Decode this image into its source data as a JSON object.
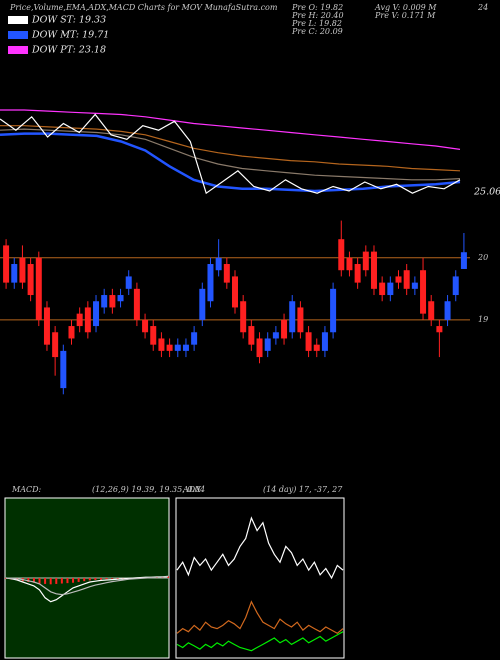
{
  "header": {
    "title": "Price,Volume,EMA,ADX,MACD Charts for MOV MunafaSutra.com",
    "legend": [
      {
        "name": "DOW ST: 19.33",
        "color": "#ffffff"
      },
      {
        "name": "DOW MT: 19.71",
        "color": "#2255ff"
      },
      {
        "name": "DOW PT: 23.18",
        "color": "#ff33ff"
      }
    ],
    "info": [
      "Pre  O: 19.82",
      "Pre  H: 20.40",
      "Pre  L: 19.82",
      "Pre  C: 20.09",
      "Avg V: 0.009 M",
      "Pre  V: 0.171 M"
    ]
  },
  "chart_data": [
    {
      "type": "line",
      "annotations": [
        "24",
        "25.06"
      ],
      "ylim": [
        17,
        25
      ],
      "series": [
        {
          "name": null,
          "color": "#ff33ff",
          "values": [
            21.0,
            21.0,
            20.95,
            20.9,
            20.85,
            20.8,
            20.7,
            20.55,
            20.4,
            20.3,
            20.2,
            20.1,
            20.0,
            19.9,
            19.8,
            19.7,
            19.6,
            19.5,
            19.4,
            19.25
          ]
        },
        {
          "name": null,
          "color": "#b5651d",
          "values": [
            20.3,
            20.3,
            20.25,
            20.2,
            20.15,
            20.05,
            19.9,
            19.6,
            19.3,
            19.1,
            18.95,
            18.85,
            18.75,
            18.7,
            18.6,
            18.55,
            18.5,
            18.4,
            18.35,
            18.3
          ]
        },
        {
          "name": null,
          "color": "#8a7a6a",
          "values": [
            20.1,
            20.15,
            20.1,
            20.05,
            20.0,
            19.9,
            19.7,
            19.3,
            18.9,
            18.6,
            18.4,
            18.3,
            18.2,
            18.1,
            18.05,
            18.0,
            17.95,
            17.9,
            17.9,
            17.95
          ]
        },
        {
          "name": null,
          "color": "#2255ff",
          "values": [
            19.9,
            19.95,
            19.95,
            19.9,
            19.85,
            19.6,
            19.2,
            18.5,
            17.9,
            17.6,
            17.5,
            17.5,
            17.45,
            17.4,
            17.45,
            17.5,
            17.6,
            17.65,
            17.7,
            17.8
          ]
        },
        {
          "name": null,
          "color": "#ffffff",
          "values": [
            20.6,
            20.1,
            20.7,
            19.8,
            20.4,
            20.0,
            20.8,
            19.9,
            19.7,
            20.3,
            20.1,
            20.5,
            19.6,
            17.3,
            17.8,
            18.3,
            17.6,
            17.4,
            17.9,
            17.5,
            17.3,
            17.6,
            17.4,
            17.8,
            17.5,
            17.7,
            17.3,
            17.6,
            17.5,
            17.9
          ]
        }
      ]
    },
    {
      "type": "candlestick",
      "ylim": [
        17.95,
        20.69
      ],
      "yticks": [
        20,
        19
      ],
      "grid_color": "#b5651d",
      "up_color": "#2255ff",
      "down_color": "#ff2020",
      "open": [
        20.2,
        19.6,
        20.0,
        19.9,
        20.0,
        19.2,
        18.8,
        17.9,
        18.9,
        19.1,
        19.2,
        18.9,
        19.2,
        19.4,
        19.3,
        19.5,
        19.5,
        19.0,
        18.9,
        18.7,
        18.6,
        18.5,
        18.5,
        18.6,
        19.0,
        19.3,
        19.8,
        19.9,
        19.7,
        19.3,
        18.9,
        18.7,
        18.5,
        18.7,
        19.0,
        18.8,
        19.2,
        18.8,
        18.6,
        18.5,
        18.8,
        20.3,
        20.0,
        19.9,
        20.1,
        20.1,
        19.6,
        19.4,
        19.7,
        19.8,
        19.5,
        19.8,
        19.3,
        18.9,
        19.0,
        19.4,
        19.82
      ],
      "high": [
        20.3,
        20.0,
        20.2,
        20.0,
        20.1,
        19.3,
        18.9,
        18.6,
        19.0,
        19.2,
        19.3,
        19.4,
        19.5,
        19.5,
        19.5,
        19.8,
        19.6,
        19.1,
        19.0,
        18.8,
        18.7,
        18.7,
        18.7,
        18.9,
        19.6,
        20.0,
        20.3,
        20.0,
        19.8,
        19.4,
        19.0,
        18.8,
        18.8,
        18.9,
        19.1,
        19.4,
        19.3,
        18.9,
        18.7,
        18.9,
        19.6,
        20.6,
        20.1,
        20.0,
        20.2,
        20.2,
        19.7,
        19.7,
        19.8,
        19.9,
        19.7,
        20.0,
        19.4,
        19.0,
        19.4,
        19.8,
        20.4
      ],
      "low": [
        19.5,
        19.5,
        19.5,
        19.3,
        18.9,
        18.5,
        18.1,
        17.8,
        18.6,
        18.8,
        18.7,
        18.8,
        19.1,
        19.1,
        19.2,
        19.4,
        18.9,
        18.7,
        18.5,
        18.4,
        18.4,
        18.4,
        18.4,
        18.5,
        18.9,
        19.2,
        19.7,
        19.5,
        19.1,
        18.7,
        18.5,
        18.3,
        18.4,
        18.6,
        18.6,
        18.7,
        18.7,
        18.4,
        18.4,
        18.4,
        18.7,
        19.7,
        19.7,
        19.5,
        19.7,
        19.4,
        19.3,
        19.3,
        19.5,
        19.4,
        19.4,
        19.0,
        18.9,
        18.4,
        18.9,
        19.3,
        19.82
      ],
      "close": [
        19.6,
        19.9,
        19.6,
        19.4,
        19.0,
        18.6,
        18.4,
        18.5,
        18.7,
        18.9,
        18.8,
        19.3,
        19.4,
        19.2,
        19.4,
        19.7,
        19.0,
        18.8,
        18.6,
        18.5,
        18.5,
        18.6,
        18.6,
        18.8,
        19.5,
        19.9,
        20.0,
        19.6,
        19.2,
        18.8,
        18.6,
        18.4,
        18.7,
        18.8,
        18.7,
        19.3,
        18.8,
        18.5,
        18.5,
        18.8,
        19.5,
        19.8,
        19.8,
        19.6,
        19.8,
        19.5,
        19.4,
        19.6,
        19.6,
        19.5,
        19.6,
        19.1,
        19.0,
        18.8,
        19.3,
        19.7,
        20.09
      ]
    },
    {
      "type": "macd",
      "title": "MACD:",
      "subtitle": "(12,26,9) 19.39, 19.35, 0.04",
      "ylim": [
        -2,
        2
      ],
      "background": "#003000",
      "histogram": {
        "color": "#ff2020",
        "values": [
          -0.02,
          -0.04,
          -0.06,
          -0.08,
          -0.1,
          -0.12,
          -0.14,
          -0.15,
          -0.16,
          -0.15,
          -0.14,
          -0.13,
          -0.12,
          -0.1,
          -0.08,
          -0.06,
          -0.05,
          -0.04,
          -0.03,
          -0.02,
          -0.02,
          -0.01,
          -0.01,
          0.0,
          0.01,
          0.01,
          0.02,
          0.02,
          0.03,
          0.04
        ]
      },
      "series": [
        {
          "name": null,
          "color": "#ffffff",
          "values": [
            0,
            -0.02,
            -0.05,
            -0.1,
            -0.15,
            -0.2,
            -0.3,
            -0.5,
            -0.6,
            -0.55,
            -0.45,
            -0.35,
            -0.25,
            -0.2,
            -0.15,
            -0.1,
            -0.08,
            -0.06,
            -0.05,
            -0.04,
            -0.03,
            -0.02,
            -0.01,
            0,
            0.01,
            0.02,
            0.02,
            0.03,
            0.03,
            0.04
          ]
        },
        {
          "name": null,
          "color": "#bbbbbb",
          "values": [
            0,
            -0.01,
            -0.02,
            -0.04,
            -0.07,
            -0.1,
            -0.15,
            -0.25,
            -0.35,
            -0.4,
            -0.42,
            -0.4,
            -0.36,
            -0.32,
            -0.27,
            -0.22,
            -0.18,
            -0.15,
            -0.12,
            -0.09,
            -0.07,
            -0.05,
            -0.03,
            -0.02,
            -0.01,
            0,
            0.01,
            0.02,
            0.02,
            0.03
          ]
        }
      ]
    },
    {
      "type": "line",
      "title": "ADX",
      "subtitle": "(14 day) 17, -37, 27",
      "ylim": [
        0,
        100
      ],
      "background": "#000000",
      "series": [
        {
          "name": null,
          "color": "#ffffff",
          "values": [
            55,
            60,
            52,
            63,
            58,
            62,
            55,
            60,
            65,
            58,
            62,
            70,
            75,
            88,
            80,
            85,
            72,
            65,
            60,
            70,
            66,
            58,
            62,
            55,
            60,
            52,
            56,
            50,
            58,
            55
          ]
        },
        {
          "name": null,
          "color": "#d2691e",
          "values": [
            15,
            18,
            16,
            20,
            17,
            22,
            19,
            18,
            20,
            23,
            21,
            18,
            25,
            35,
            28,
            22,
            20,
            18,
            24,
            21,
            19,
            22,
            17,
            20,
            18,
            16,
            19,
            17,
            15,
            18
          ]
        },
        {
          "name": null,
          "color": "#00ee00",
          "values": [
            8,
            6,
            9,
            7,
            5,
            8,
            6,
            9,
            7,
            10,
            8,
            6,
            5,
            4,
            6,
            8,
            10,
            12,
            9,
            11,
            8,
            10,
            12,
            9,
            11,
            13,
            10,
            12,
            14,
            16
          ]
        }
      ]
    }
  ]
}
